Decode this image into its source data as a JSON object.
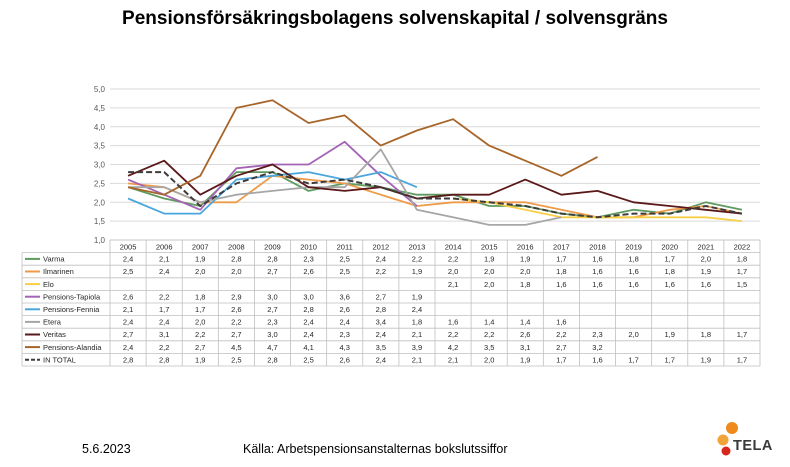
{
  "title": "Pensionsförsäkringsbolagens solvenskapital / solvensgräns",
  "footer": {
    "date": "5.6.2023",
    "source": "Källa: Arbetspensionsanstalternas bokslutssiffor",
    "logo_text": "TELA"
  },
  "chart_data": {
    "type": "line",
    "title": "Pensionsförsäkringsbolagens solvenskapital / solvensgräns",
    "xlabel": "",
    "ylabel": "",
    "ylim": [
      1.0,
      5.0
    ],
    "yticks": [
      "1,0",
      "1,5",
      "2,0",
      "2,5",
      "3,0",
      "3,5",
      "4,0",
      "4,5",
      "5,0"
    ],
    "grid": true,
    "legend": "data-table",
    "categories": [
      "2005",
      "2006",
      "2007",
      "2008",
      "2009",
      "2010",
      "2011",
      "2012",
      "2013",
      "2014",
      "2015",
      "2016",
      "2017",
      "2018",
      "2019",
      "2020",
      "2021",
      "2022"
    ],
    "series": [
      {
        "name": "Varma",
        "color": "#5f9a5f",
        "dashed": false,
        "values": [
          2.4,
          2.1,
          1.9,
          2.8,
          2.8,
          2.3,
          2.5,
          2.4,
          2.2,
          2.2,
          1.9,
          1.9,
          1.7,
          1.6,
          1.8,
          1.7,
          2.0,
          1.8
        ]
      },
      {
        "name": "Ilmarinen",
        "color": "#ef9a48",
        "dashed": false,
        "values": [
          2.5,
          2.4,
          2.0,
          2.0,
          2.7,
          2.6,
          2.5,
          2.2,
          1.9,
          2.0,
          2.0,
          2.0,
          1.8,
          1.6,
          1.6,
          1.8,
          1.9,
          1.7
        ]
      },
      {
        "name": "Elo",
        "color": "#f6cf45",
        "dashed": false,
        "values": [
          null,
          null,
          null,
          null,
          null,
          null,
          null,
          null,
          null,
          2.1,
          2.0,
          1.8,
          1.6,
          1.6,
          1.6,
          1.6,
          1.6,
          1.5
        ]
      },
      {
        "name": "Pensions-Tapiola",
        "color": "#a463b5",
        "dashed": false,
        "values": [
          2.6,
          2.2,
          1.8,
          2.9,
          3.0,
          3.0,
          3.6,
          2.7,
          1.9,
          null,
          null,
          null,
          null,
          null,
          null,
          null,
          null,
          null
        ]
      },
      {
        "name": "Pensions-Fennia",
        "color": "#4aa6de",
        "dashed": false,
        "values": [
          2.1,
          1.7,
          1.7,
          2.6,
          2.7,
          2.8,
          2.6,
          2.8,
          2.4,
          null,
          null,
          null,
          null,
          null,
          null,
          null,
          null,
          null
        ]
      },
      {
        "name": "Etera",
        "color": "#a6a6a6",
        "dashed": false,
        "values": [
          2.4,
          2.4,
          2.0,
          2.2,
          2.3,
          2.4,
          2.4,
          3.4,
          1.8,
          1.6,
          1.4,
          1.4,
          1.6,
          null,
          null,
          null,
          null,
          null
        ]
      },
      {
        "name": "Veritas",
        "color": "#5a1818",
        "dashed": false,
        "values": [
          2.7,
          3.1,
          2.2,
          2.7,
          3.0,
          2.4,
          2.3,
          2.4,
          2.1,
          2.2,
          2.2,
          2.6,
          2.2,
          2.3,
          2.0,
          1.9,
          1.8,
          1.7
        ]
      },
      {
        "name": "Pensions-Alandia",
        "color": "#a8652a",
        "dashed": false,
        "values": [
          2.4,
          2.2,
          2.7,
          4.5,
          4.7,
          4.1,
          4.3,
          3.5,
          3.9,
          4.2,
          3.5,
          3.1,
          2.7,
          3.2,
          null,
          null,
          null,
          null
        ]
      },
      {
        "name": "IN TOTAL",
        "color": "#3c3c3c",
        "dashed": true,
        "values": [
          2.8,
          2.8,
          1.9,
          2.5,
          2.8,
          2.5,
          2.6,
          2.4,
          2.1,
          2.1,
          2.0,
          1.9,
          1.7,
          1.6,
          1.7,
          1.7,
          1.9,
          1.7
        ]
      }
    ]
  }
}
